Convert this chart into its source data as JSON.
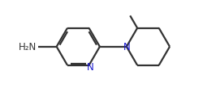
{
  "bg_color": "#ffffff",
  "line_color": "#333333",
  "line_width": 1.6,
  "blue_color": "#1a1acd",
  "figsize": [
    2.66,
    1.15
  ],
  "dpi": 100,
  "xlim": [
    0,
    10.5
  ],
  "ylim": [
    0,
    4.0
  ]
}
